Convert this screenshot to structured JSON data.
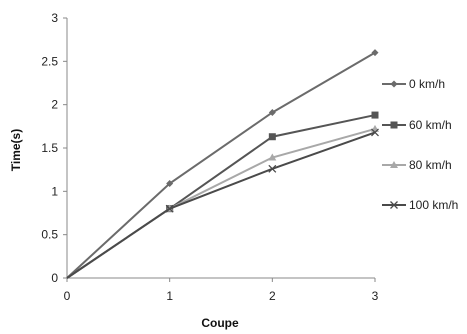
{
  "chart_data": {
    "type": "line",
    "xlabel": "Coupe",
    "ylabel": "Time(s)",
    "x": [
      0,
      1,
      2,
      3
    ],
    "xlim": [
      0,
      3
    ],
    "ylim": [
      0,
      3
    ],
    "x_ticks": [
      "0",
      "1",
      "2",
      "3"
    ],
    "y_ticks": [
      "0",
      "0.5",
      "1",
      "1.5",
      "2",
      "2.5",
      "3"
    ],
    "grid": false,
    "legend_position": "right",
    "series": [
      {
        "name": "0 km/h",
        "values": [
          0,
          1.09,
          1.91,
          2.6
        ],
        "color": "#6b6b6b",
        "marker": "diamond"
      },
      {
        "name": "60 km/h",
        "values": [
          0,
          0.8,
          1.63,
          1.88
        ],
        "color": "#555555",
        "marker": "square"
      },
      {
        "name": "80 km/h",
        "values": [
          0,
          0.8,
          1.39,
          1.72
        ],
        "color": "#a8a8a8",
        "marker": "triangle"
      },
      {
        "name": "100 km/h",
        "values": [
          0,
          0.8,
          1.26,
          1.68
        ],
        "color": "#4a4a4a",
        "marker": "x"
      }
    ]
  }
}
